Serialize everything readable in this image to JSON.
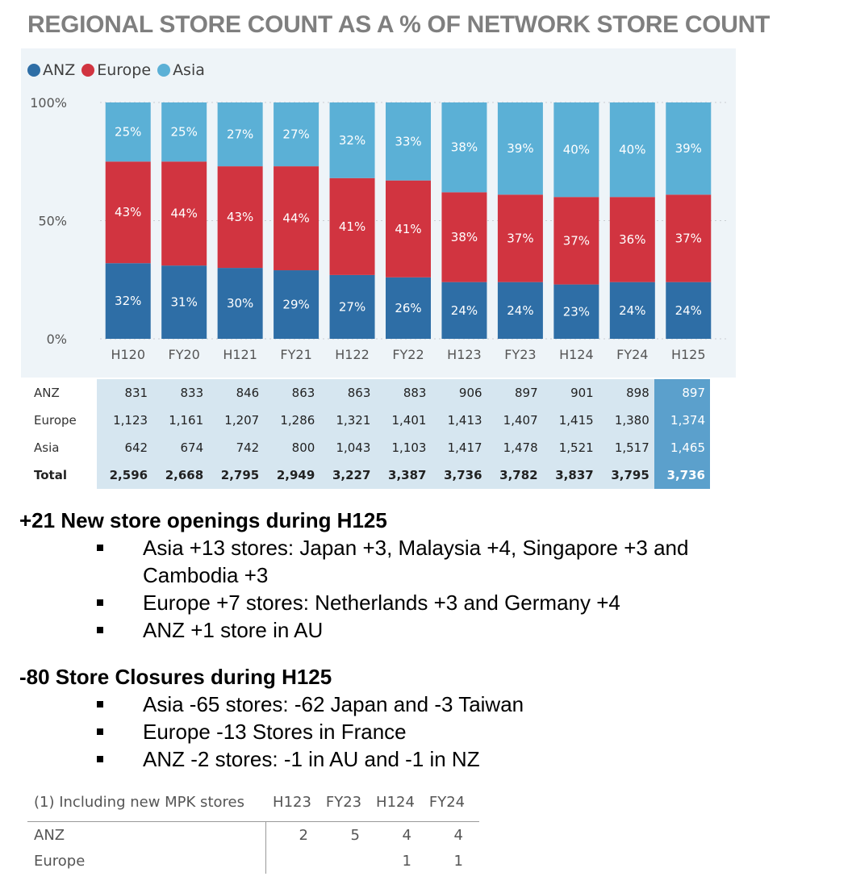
{
  "title": "REGIONAL STORE COUNT AS A % OF NETWORK STORE COUNT",
  "colors": {
    "anz": "#2e6ea6",
    "europe": "#d13440",
    "asia": "#5bb0d6",
    "panel_bg": "#eef4f8",
    "table_bg": "#d6e6f0",
    "table_highlight": "#5ba0cc"
  },
  "chart_data": {
    "type": "bar",
    "stacked": true,
    "categories": [
      "H120",
      "FY20",
      "H121",
      "FY21",
      "H122",
      "FY22",
      "H123",
      "FY23",
      "H124",
      "FY24",
      "H125"
    ],
    "series": [
      {
        "name": "ANZ",
        "values": [
          32,
          31,
          30,
          29,
          27,
          26,
          24,
          24,
          23,
          24,
          24
        ],
        "labels": [
          "32%",
          "31%",
          "30%",
          "29%",
          "27%",
          "26%",
          "24%",
          "24%",
          "23%",
          "24%",
          "24%"
        ]
      },
      {
        "name": "Europe",
        "values": [
          43,
          44,
          43,
          44,
          41,
          41,
          38,
          37,
          37,
          36,
          37
        ],
        "labels": [
          "43%",
          "44%",
          "43%",
          "44%",
          "41%",
          "41%",
          "38%",
          "37%",
          "37%",
          "36%",
          "37%"
        ]
      },
      {
        "name": "Asia",
        "values": [
          25,
          25,
          27,
          27,
          32,
          33,
          38,
          39,
          40,
          40,
          39
        ],
        "labels": [
          "25%",
          "25%",
          "27%",
          "27%",
          "32%",
          "33%",
          "38%",
          "39%",
          "40%",
          "40%",
          "39%"
        ]
      }
    ],
    "yticks": [
      "0%",
      "50%",
      "100%"
    ],
    "ylim": [
      0,
      100
    ],
    "legend_position": "top-left",
    "grid": true
  },
  "legend": [
    {
      "label": "ANZ",
      "color": "#2e6ea6"
    },
    {
      "label": "Europe",
      "color": "#d13440"
    },
    {
      "label": "Asia",
      "color": "#5bb0d6"
    }
  ],
  "table": {
    "rows": [
      {
        "label": "ANZ",
        "values": [
          "831",
          "833",
          "846",
          "863",
          "863",
          "883",
          "906",
          "897",
          "901",
          "898",
          "897"
        ]
      },
      {
        "label": "Europe",
        "values": [
          "1,123",
          "1,161",
          "1,207",
          "1,286",
          "1,321",
          "1,401",
          "1,413",
          "1,407",
          "1,415",
          "1,380",
          "1,374"
        ]
      },
      {
        "label": "Asia",
        "values": [
          "642",
          "674",
          "742",
          "800",
          "1,043",
          "1,103",
          "1,417",
          "1,478",
          "1,521",
          "1,517",
          "1,465"
        ]
      },
      {
        "label": "Total",
        "values": [
          "2,596",
          "2,668",
          "2,795",
          "2,949",
          "3,227",
          "3,387",
          "3,736",
          "3,782",
          "3,837",
          "3,795",
          "3,736"
        ]
      }
    ]
  },
  "openings": {
    "heading": "+21 New store openings during H125",
    "bullets": [
      "Asia +13 stores: Japan +3, Malaysia +4, Singapore +3 and Cambodia +3",
      "Europe +7 stores: Netherlands +3 and Germany +4",
      "ANZ +1 store in AU"
    ]
  },
  "closures": {
    "heading": "-80 Store Closures during H125",
    "bullets": [
      "Asia -65 stores: -62 Japan and -3 Taiwan",
      "Europe -13 Stores in France",
      "ANZ -2 stores: -1 in AU and -1 in NZ"
    ]
  },
  "footnote": {
    "title": "(1) Including new MPK stores",
    "columns": [
      "H123",
      "FY23",
      "H124",
      "FY24"
    ],
    "rows": [
      {
        "label": "ANZ",
        "values": [
          "2",
          "5",
          "4",
          "4"
        ]
      },
      {
        "label": "Europe",
        "values": [
          "",
          "",
          "1",
          "1"
        ]
      }
    ]
  }
}
